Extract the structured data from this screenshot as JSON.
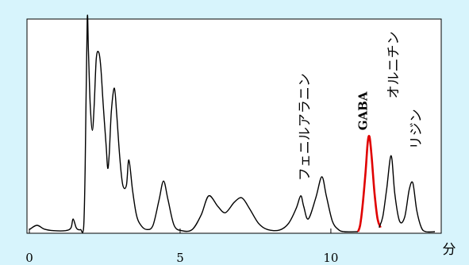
{
  "chart_data": {
    "type": "line",
    "xlabel": "分",
    "xlim": [
      0,
      13.45
    ],
    "ylim": [
      0,
      100
    ],
    "grid": false,
    "x_ticks": [
      {
        "value": 0,
        "label": "0"
      },
      {
        "value": 5,
        "label": "5"
      },
      {
        "value": 10,
        "label": "10"
      }
    ],
    "series": [
      {
        "color": "#000000",
        "points": [
          [
            0,
            1
          ],
          [
            0.25,
            3
          ],
          [
            0.5,
            1.2
          ],
          [
            0.8,
            0.5
          ],
          [
            1.2,
            0.5
          ],
          [
            1.38,
            1.8
          ],
          [
            1.45,
            6
          ],
          [
            1.55,
            2
          ],
          [
            1.62,
            1
          ],
          [
            1.7,
            1
          ],
          [
            1.8,
            2
          ],
          [
            1.85,
            30
          ],
          [
            1.92,
            100
          ],
          [
            1.96,
            85
          ],
          [
            2.02,
            60
          ],
          [
            2.09,
            48
          ],
          [
            2.15,
            60
          ],
          [
            2.22,
            82
          ],
          [
            2.3,
            85
          ],
          [
            2.37,
            78
          ],
          [
            2.45,
            60
          ],
          [
            2.55,
            40
          ],
          [
            2.6,
            30
          ],
          [
            2.65,
            37
          ],
          [
            2.72,
            57
          ],
          [
            2.82,
            68
          ],
          [
            2.9,
            55
          ],
          [
            3.0,
            35
          ],
          [
            3.1,
            22
          ],
          [
            3.22,
            22
          ],
          [
            3.3,
            34
          ],
          [
            3.42,
            20
          ],
          [
            3.55,
            8
          ],
          [
            3.7,
            3
          ],
          [
            3.9,
            1
          ],
          [
            4.1,
            3
          ],
          [
            4.3,
            15
          ],
          [
            4.45,
            24
          ],
          [
            4.6,
            15
          ],
          [
            4.8,
            3
          ],
          [
            5.05,
            0.5
          ],
          [
            5.4,
            1
          ],
          [
            5.7,
            8
          ],
          [
            5.95,
            17
          ],
          [
            6.25,
            12
          ],
          [
            6.5,
            9
          ],
          [
            6.8,
            14
          ],
          [
            7.05,
            16
          ],
          [
            7.3,
            11
          ],
          [
            7.6,
            4
          ],
          [
            7.9,
            1
          ],
          [
            8.3,
            0.8
          ],
          [
            8.6,
            4
          ],
          [
            8.85,
            11
          ],
          [
            9.0,
            17
          ],
          [
            9.1,
            12
          ],
          [
            9.25,
            6
          ],
          [
            9.5,
            16
          ],
          [
            9.7,
            26
          ],
          [
            9.85,
            17
          ],
          [
            10.05,
            5
          ],
          [
            10.25,
            1
          ],
          [
            10.45,
            0
          ],
          [
            10.9,
            0
          ]
        ]
      },
      {
        "color": "#e00000",
        "points": [
          [
            10.9,
            0
          ],
          [
            10.97,
            3
          ],
          [
            11.05,
            12
          ],
          [
            11.15,
            28
          ],
          [
            11.22,
            42
          ],
          [
            11.28,
            45
          ],
          [
            11.35,
            36
          ],
          [
            11.45,
            18
          ],
          [
            11.55,
            6
          ],
          [
            11.65,
            2
          ]
        ]
      },
      {
        "color": "#000000",
        "points": [
          [
            11.6,
            2
          ],
          [
            11.72,
            7
          ],
          [
            11.85,
            20
          ],
          [
            12.0,
            36
          ],
          [
            12.12,
            18
          ],
          [
            12.28,
            5
          ],
          [
            12.45,
            7
          ],
          [
            12.6,
            20
          ],
          [
            12.72,
            23
          ],
          [
            12.85,
            10
          ],
          [
            13.0,
            2
          ],
          [
            13.15,
            0
          ],
          [
            13.45,
            0
          ]
        ]
      }
    ],
    "annotations": [
      {
        "text": "フェニルアラニン",
        "x": 9.15,
        "y": 21,
        "orientation": "vertical",
        "bold": false
      },
      {
        "text": "GABA",
        "x": 11.1,
        "y": 45,
        "orientation": "vertical",
        "bold": true
      },
      {
        "text": "オルニチン",
        "x": 12.1,
        "y": 60,
        "orientation": "vertical",
        "bold": false
      },
      {
        "text": "リジン",
        "x": 12.85,
        "y": 36,
        "orientation": "vertical",
        "bold": false
      }
    ]
  }
}
